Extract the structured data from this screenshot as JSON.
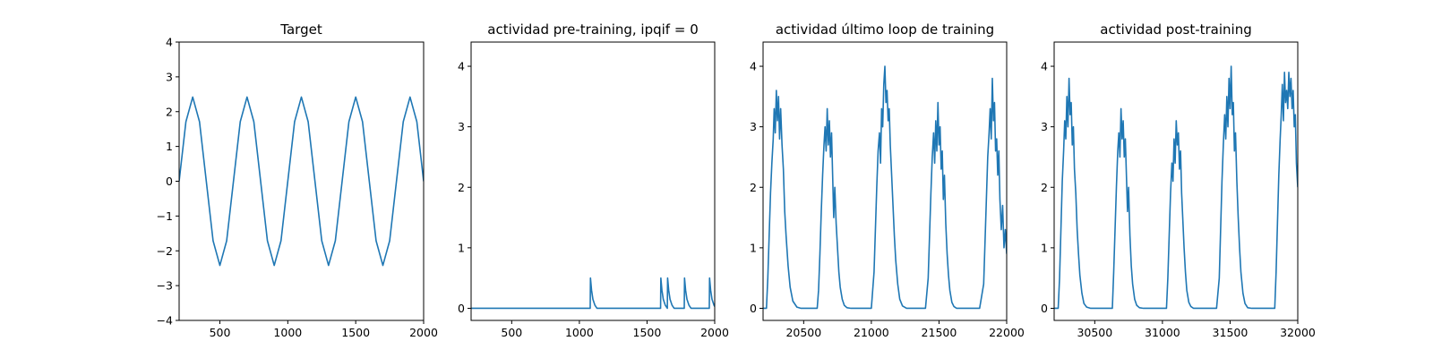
{
  "colors": {
    "series": "#1f77b4",
    "axis": "#000000",
    "background": "#ffffff"
  },
  "chart_data": [
    {
      "type": "line",
      "title": "Target",
      "xlabel": "",
      "ylabel": "",
      "xlim": [
        200,
        2000
      ],
      "ylim": [
        -4,
        4
      ],
      "xticks": [
        500,
        1000,
        1500,
        2000
      ],
      "xtick_labels": [
        "500",
        "1000",
        "1500",
        "2000"
      ],
      "yticks": [
        -4,
        -3,
        -2,
        -1,
        0,
        1,
        2,
        3,
        4
      ],
      "ytick_labels": [
        "−4",
        "−3",
        "−2",
        "−1",
        "0",
        "1",
        "2",
        "3",
        "4"
      ],
      "grid": false,
      "series": [
        {
          "x": [
            200,
            250,
            300,
            350,
            400,
            450,
            500,
            550,
            600,
            650,
            700,
            750,
            800,
            850,
            900,
            950,
            1000,
            1050,
            1100,
            1150,
            1200,
            1250,
            1300,
            1350,
            1400,
            1450,
            1500,
            1550,
            1600,
            1650,
            1700,
            1750,
            1800,
            1850,
            1900,
            1950,
            2000
          ],
          "y": [
            0.0,
            1.71,
            2.42,
            1.71,
            0.0,
            -1.71,
            -2.42,
            -1.71,
            0.0,
            1.71,
            2.42,
            1.71,
            0.0,
            -1.71,
            -2.42,
            -1.71,
            0.0,
            1.71,
            2.42,
            1.71,
            0.0,
            -1.71,
            -2.42,
            -1.71,
            0.0,
            1.71,
            2.42,
            1.71,
            0.0,
            -1.71,
            -2.42,
            -1.71,
            0.0,
            1.71,
            2.42,
            1.71,
            0.0
          ]
        }
      ]
    },
    {
      "type": "line",
      "title": "actividad pre-training, ipqif = 0",
      "xlabel": "",
      "ylabel": "",
      "xlim": [
        200,
        2000
      ],
      "ylim": [
        -0.2,
        4.4
      ],
      "xticks": [
        500,
        1000,
        1500,
        2000
      ],
      "xtick_labels": [
        "500",
        "1000",
        "1500",
        "2000"
      ],
      "yticks": [
        0,
        1,
        2,
        3,
        4
      ],
      "ytick_labels": [
        "0",
        "1",
        "2",
        "3",
        "4"
      ],
      "grid": false,
      "series": [
        {
          "x": [
            200,
            1080,
            1082,
            1090,
            1100,
            1115,
            1130,
            1600,
            1602,
            1610,
            1620,
            1635,
            1650,
            1652,
            1660,
            1670,
            1685,
            1700,
            1775,
            1777,
            1785,
            1795,
            1810,
            1825,
            1960,
            1962,
            1970,
            1980,
            1995,
            2000
          ],
          "y": [
            0.0,
            0.0,
            0.5,
            0.3,
            0.15,
            0.05,
            0.0,
            0.0,
            0.5,
            0.3,
            0.15,
            0.05,
            0.0,
            0.5,
            0.3,
            0.15,
            0.05,
            0.0,
            0.0,
            0.5,
            0.3,
            0.15,
            0.05,
            0.0,
            0.0,
            0.5,
            0.3,
            0.15,
            0.05,
            0.03
          ]
        }
      ]
    },
    {
      "type": "line",
      "title": "actividad último loop de training",
      "xlabel": "",
      "ylabel": "",
      "xlim": [
        20200,
        22000
      ],
      "ylim": [
        -0.2,
        4.4
      ],
      "xticks": [
        20500,
        21000,
        21500,
        22000
      ],
      "xtick_labels": [
        "20500",
        "21000",
        "21500",
        "22000"
      ],
      "yticks": [
        0,
        1,
        2,
        3,
        4
      ],
      "ytick_labels": [
        "0",
        "1",
        "2",
        "3",
        "4"
      ],
      "grid": false,
      "series": [
        {
          "x": [
            20200,
            20225,
            20235,
            20245,
            20255,
            20265,
            20275,
            20282,
            20290,
            20298,
            20306,
            20314,
            20322,
            20330,
            20340,
            20350,
            20360,
            20370,
            20385,
            20400,
            20420,
            20450,
            20480,
            20500,
            20600,
            20610,
            20620,
            20630,
            20640,
            20650,
            20658,
            20666,
            20674,
            20682,
            20690,
            20698,
            20706,
            20714,
            20722,
            20730,
            20740,
            20750,
            20760,
            20770,
            20785,
            20800,
            20820,
            20850,
            20880,
            20900,
            21000,
            21020,
            21030,
            21040,
            21050,
            21060,
            21068,
            21076,
            21084,
            21092,
            21100,
            21108,
            21116,
            21124,
            21132,
            21140,
            21150,
            21160,
            21170,
            21180,
            21195,
            21210,
            21230,
            21260,
            21300,
            21400,
            21420,
            21430,
            21440,
            21450,
            21460,
            21468,
            21476,
            21484,
            21492,
            21500,
            21508,
            21516,
            21524,
            21532,
            21540,
            21550,
            21560,
            21570,
            21580,
            21595,
            21610,
            21630,
            21660,
            21700,
            21800,
            21830,
            21840,
            21850,
            21860,
            21870,
            21878,
            21886,
            21894,
            21902,
            21910,
            21918,
            21926,
            21934,
            21942,
            21950,
            21960,
            21970,
            21980,
            21990,
            22000
          ],
          "y": [
            0.0,
            0.0,
            0.5,
            1.2,
            1.9,
            2.4,
            2.8,
            3.3,
            2.9,
            3.6,
            3.1,
            3.5,
            2.8,
            3.3,
            2.7,
            2.3,
            1.6,
            1.2,
            0.7,
            0.35,
            0.12,
            0.02,
            0.0,
            0.0,
            0.0,
            0.3,
            0.9,
            1.6,
            2.2,
            2.7,
            3.0,
            2.6,
            3.3,
            2.7,
            3.1,
            2.5,
            2.9,
            2.2,
            1.5,
            2.0,
            1.4,
            1.0,
            0.6,
            0.35,
            0.15,
            0.05,
            0.01,
            0.0,
            0.0,
            0.0,
            0.0,
            0.6,
            1.3,
            2.0,
            2.6,
            2.9,
            2.4,
            3.3,
            3.0,
            3.7,
            4.0,
            3.4,
            3.6,
            3.1,
            3.3,
            2.7,
            2.2,
            1.7,
            1.2,
            0.8,
            0.4,
            0.15,
            0.04,
            0.0,
            0.0,
            0.0,
            0.5,
            1.2,
            1.9,
            2.5,
            2.9,
            2.4,
            3.1,
            2.6,
            3.4,
            2.7,
            3.0,
            2.3,
            2.6,
            1.8,
            2.2,
            1.4,
            0.9,
            0.55,
            0.3,
            0.1,
            0.03,
            0.0,
            0.0,
            0.0,
            0.0,
            0.4,
            1.1,
            1.8,
            2.5,
            2.9,
            3.3,
            2.8,
            3.8,
            3.1,
            3.4,
            2.6,
            2.8,
            2.2,
            2.6,
            1.8,
            1.3,
            1.7,
            1.0,
            1.3,
            0.9
          ]
        }
      ]
    },
    {
      "type": "line",
      "title": "actividad post-training",
      "xlabel": "",
      "ylabel": "",
      "xlim": [
        30200,
        32000
      ],
      "ylim": [
        -0.2,
        4.4
      ],
      "xticks": [
        30500,
        31000,
        31500,
        32000
      ],
      "xtick_labels": [
        "30500",
        "31000",
        "31500",
        "32000"
      ],
      "yticks": [
        0,
        1,
        2,
        3,
        4
      ],
      "ytick_labels": [
        "0",
        "1",
        "2",
        "3",
        "4"
      ],
      "grid": false,
      "series": [
        {
          "x": [
            30200,
            30230,
            30240,
            30250,
            30260,
            30270,
            30278,
            30286,
            30294,
            30302,
            30310,
            30318,
            30326,
            30334,
            30342,
            30350,
            30360,
            30370,
            30380,
            30390,
            30405,
            30420,
            30440,
            30470,
            30500,
            30600,
            30630,
            30640,
            30650,
            30660,
            30670,
            30678,
            30686,
            30694,
            30702,
            30710,
            30718,
            30726,
            30734,
            30742,
            30750,
            30760,
            30770,
            30780,
            30795,
            30810,
            30830,
            30860,
            30900,
            31000,
            31030,
            31040,
            31050,
            31060,
            31070,
            31078,
            31086,
            31094,
            31102,
            31110,
            31118,
            31126,
            31134,
            31142,
            31150,
            31160,
            31170,
            31180,
            31195,
            31210,
            31230,
            31260,
            31300,
            31400,
            31420,
            31430,
            31440,
            31450,
            31460,
            31468,
            31476,
            31484,
            31492,
            31500,
            31508,
            31516,
            31524,
            31532,
            31540,
            31550,
            31560,
            31570,
            31580,
            31595,
            31610,
            31630,
            31660,
            31700,
            31800,
            31830,
            31840,
            31850,
            31860,
            31870,
            31878,
            31886,
            31894,
            31902,
            31910,
            31918,
            31926,
            31934,
            31942,
            31950,
            31958,
            31966,
            31974,
            31982,
            31990,
            32000
          ],
          "y": [
            0.0,
            0.0,
            0.5,
            1.3,
            2.1,
            2.6,
            3.1,
            2.8,
            3.5,
            3.0,
            3.8,
            3.2,
            3.4,
            2.7,
            3.0,
            2.3,
            1.9,
            1.3,
            0.9,
            0.55,
            0.25,
            0.08,
            0.02,
            0.0,
            0.0,
            0.0,
            0.0,
            0.6,
            1.3,
            2.0,
            2.6,
            2.9,
            2.5,
            3.3,
            2.8,
            3.1,
            2.5,
            2.8,
            2.2,
            1.6,
            2.0,
            1.2,
            0.7,
            0.4,
            0.15,
            0.05,
            0.01,
            0.0,
            0.0,
            0.0,
            0.0,
            0.5,
            1.2,
            1.9,
            2.4,
            2.1,
            2.8,
            2.4,
            3.1,
            2.7,
            2.9,
            2.3,
            2.6,
            1.9,
            1.5,
            1.0,
            0.6,
            0.3,
            0.1,
            0.03,
            0.0,
            0.0,
            0.0,
            0.0,
            0.5,
            1.3,
            2.1,
            2.7,
            3.2,
            2.8,
            3.5,
            3.0,
            3.8,
            3.3,
            4.0,
            3.2,
            3.4,
            2.6,
            2.9,
            2.1,
            1.5,
            1.0,
            0.6,
            0.25,
            0.08,
            0.01,
            0.0,
            0.0,
            0.0,
            0.0,
            0.6,
            1.4,
            2.2,
            2.8,
            3.2,
            3.7,
            3.1,
            3.9,
            3.4,
            3.6,
            3.3,
            3.9,
            3.5,
            3.8,
            3.3,
            3.6,
            3.0,
            3.2,
            2.4,
            2.0
          ]
        }
      ]
    }
  ]
}
